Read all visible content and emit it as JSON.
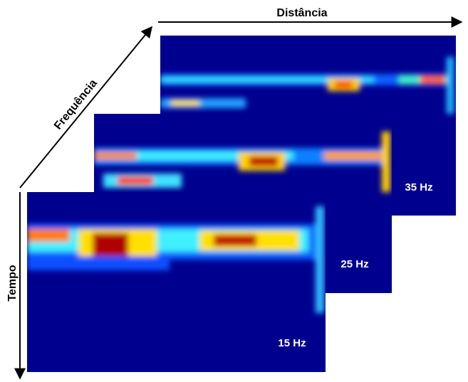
{
  "axes": {
    "distance": "Distância",
    "frequency": "Frequência",
    "time": "Tempo"
  },
  "panels": [
    {
      "label": "35 Hz"
    },
    {
      "label": "25 Hz"
    },
    {
      "label": "15 Hz"
    }
  ]
}
